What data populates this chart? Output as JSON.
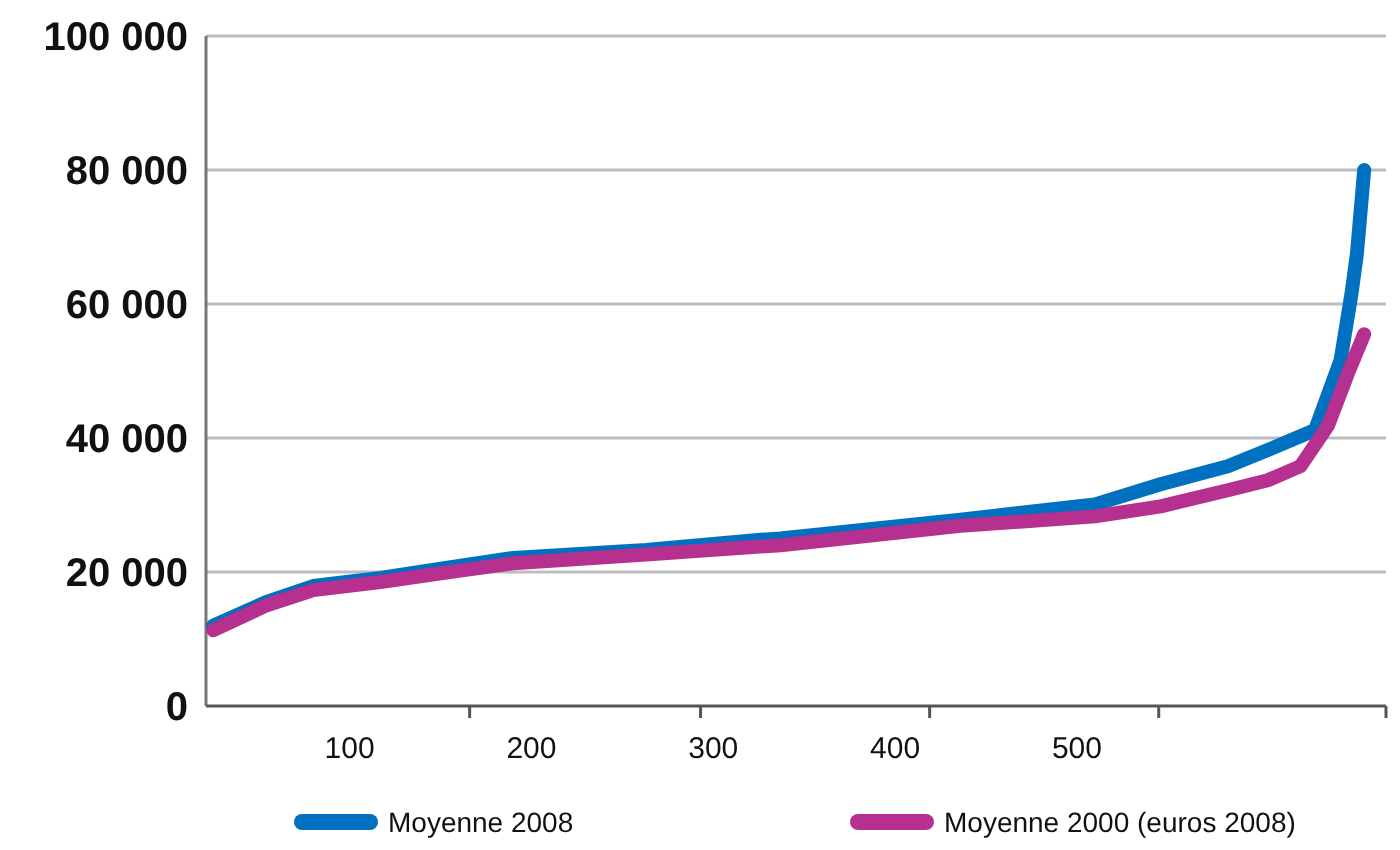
{
  "chart_data": {
    "type": "line",
    "x": [
      25,
      54,
      80,
      117,
      153,
      190,
      263,
      326,
      337,
      436,
      510,
      546,
      583,
      605,
      631,
      645,
      651,
      654,
      658
    ],
    "xlim": [
      21,
      670
    ],
    "xticks": [
      100,
      {
        "value": 166,
        "label": null
      },
      200,
      {
        "value": 293,
        "label": null
      },
      300,
      {
        "value": 419,
        "label": null
      },
      400,
      {
        "value": 545,
        "label": null
      },
      500
    ],
    "ylim": [
      0,
      100000
    ],
    "yticks": [
      {
        "value": 0,
        "label": "0"
      },
      {
        "value": 20000,
        "label": "20 000"
      },
      {
        "value": 40000,
        "label": "40 000"
      },
      {
        "value": 60000,
        "label": "60 000"
      },
      {
        "value": 80000,
        "label": "80 000"
      },
      {
        "value": 100000,
        "label": "100 000"
      }
    ],
    "grid": "y",
    "legend": "bottom",
    "marker": "none",
    "line_style": "solid",
    "series": [
      {
        "name": "Moyenne 2008",
        "color": "#0070c0",
        "values": [
          12000,
          15500,
          17900,
          19100,
          20600,
          22100,
          23300,
          24800,
          25000,
          27800,
          30100,
          33100,
          35800,
          38200,
          41200,
          51600,
          61500,
          67500,
          80000
        ]
      },
      {
        "name": "Moyenne 2000 (euros 2008)",
        "color": "#b5308f",
        "x": [
          25,
          54,
          80,
          117,
          153,
          190,
          263,
          337,
          436,
          510,
          546,
          583,
          605,
          623,
          638,
          649,
          658
        ],
        "values": [
          11300,
          15000,
          17300,
          18500,
          19900,
          21300,
          22600,
          24000,
          26900,
          28300,
          29800,
          32200,
          33700,
          35800,
          41800,
          49600,
          55500
        ]
      }
    ]
  }
}
